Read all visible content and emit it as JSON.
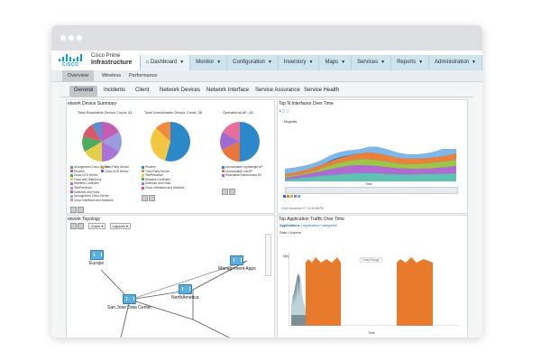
{
  "browser": {
    "dots": 3
  },
  "header": {
    "product_line1": "Cisco Prime",
    "product_line2": "Infrastructure",
    "logo_text": "CISCO"
  },
  "main_nav": [
    {
      "label": "Dashboard",
      "active": true
    },
    {
      "label": "Monitor"
    },
    {
      "label": "Configuration"
    },
    {
      "label": "Inventory"
    },
    {
      "label": "Maps"
    },
    {
      "label": "Services"
    },
    {
      "label": "Reports"
    },
    {
      "label": "Administration"
    }
  ],
  "sub_tabs": [
    "Overview",
    "Wireless",
    "Performance"
  ],
  "tabs": [
    "General",
    "Incidents",
    "Client",
    "Network Devices",
    "Network Interface",
    "Service Assurance",
    "Service Health"
  ],
  "device_summary": {
    "title": "etwork Device Summary",
    "reachable_label": "Total Reachable Device Count:",
    "reachable_count": "41",
    "unreachable_label": "Total Unreachable Device Count:",
    "unreachable_count": "26",
    "operational_label": "Operational AP:",
    "operational_count": "24",
    "legend1": [
      "Unsupported Cisco Device",
      "Routers",
      "Cisco UCS Series",
      "Voice and Telephony",
      "Wireless Controller",
      "TelePresence",
      "Switches and Hubs",
      "Unsupported Cisco Device",
      "Cisco Interfaces and Modules"
    ],
    "legend1_b": [
      "Third Party Device",
      "Cisco UCS Series"
    ],
    "legend2": [
      "Routers",
      "Third Party Device",
      "TelePresence",
      "Wireless Controller",
      "Switches and Hubs",
      "Cisco Interfaces and Modules"
    ],
    "legend3": [
      "Unreachable Lightweight AP",
      "Unreachable Lwt AP",
      "Reachable Autonomous AP"
    ]
  },
  "interfaces_panel": {
    "title": "Top N Interfaces Over Time",
    "ylabel": "Megabits",
    "xlabel": "Time",
    "footer": "2016 December 07, 12:34:36 PM"
  },
  "topology": {
    "title": "etwork Topology",
    "zoom_label": "Zoom",
    "layouts_label": "Layouts",
    "nodes": [
      "Europe",
      "Management Apps",
      "NorthAmerica",
      "San Jose Data Center"
    ]
  },
  "app_traffic": {
    "title": "Top Application Traffic Over Time",
    "subtitle_a": "Applications",
    "subtitle_b": "Application Categories",
    "rate_label": "Rate",
    "rate_value": "Volume",
    "ylabel": "Megabits",
    "xlabel": "Time",
    "tooltip": "Total Range"
  }
}
